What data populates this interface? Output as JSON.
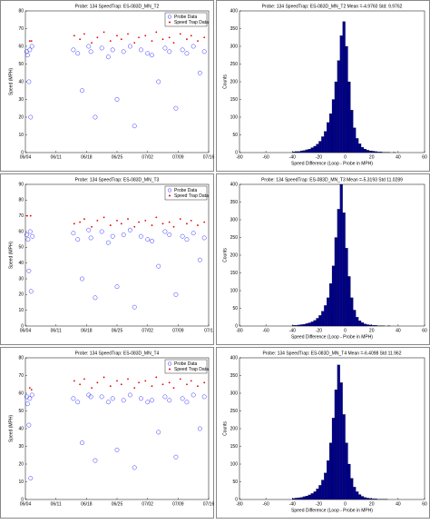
{
  "chart_data": [
    {
      "type": "scatter",
      "title": "Probe: 134    SpeedTrap: ES-083D_MN_T2",
      "ylabel": "Speed (MPH)",
      "xlim": [
        0,
        42
      ],
      "xticks": [
        {
          "value": 0,
          "label": "06/04"
        },
        {
          "value": 7,
          "label": "06/11"
        },
        {
          "value": 14,
          "label": "06/18"
        },
        {
          "value": 21,
          "label": "06/25"
        },
        {
          "value": 28,
          "label": "07/02"
        },
        {
          "value": 35,
          "label": "07/09"
        },
        {
          "value": 42,
          "label": "07/16"
        }
      ],
      "ylim": [
        0,
        80
      ],
      "yticks": [
        0,
        10,
        20,
        30,
        40,
        50,
        60,
        70,
        80
      ],
      "legend": "upper-right",
      "series": [
        {
          "name": "Probe Data",
          "color": "#3030ff",
          "x": [
            0.3,
            0.5,
            0.8,
            1.0,
            1.2,
            1.5,
            11,
            12,
            13,
            14.5,
            15,
            16,
            17.5,
            19,
            20,
            21,
            22.5,
            24,
            25,
            26.5,
            28,
            29,
            30.5,
            32,
            33,
            34.5,
            36,
            37,
            38.5,
            40,
            41
          ],
          "values": [
            57,
            55,
            40,
            58,
            20,
            60,
            58,
            56,
            35,
            60,
            57,
            20,
            59,
            54,
            58,
            30,
            57,
            60,
            15,
            58,
            56,
            55,
            40,
            59,
            57,
            25,
            58,
            56,
            60,
            45,
            57
          ]
        },
        {
          "name": "Speed Trap Data",
          "color": "#e00000",
          "x": [
            1.0,
            1.4,
            11.2,
            12.5,
            13.5,
            15.2,
            16.5,
            18,
            19.5,
            21,
            22,
            23.5,
            25,
            26,
            27.5,
            29,
            30,
            31.5,
            33,
            34,
            35.5,
            37,
            38,
            39.5,
            41
          ],
          "values": [
            63,
            63,
            66,
            64,
            67,
            62,
            65,
            68,
            63,
            66,
            64,
            67,
            62,
            65,
            66,
            63,
            68,
            64,
            65,
            62,
            67,
            64,
            66,
            63,
            65
          ]
        }
      ]
    },
    {
      "type": "histogram",
      "title": "Probe: 134    SpeedTrap: ES-083D_MN_T2    Mean =-4.9760  Std: 9.9762",
      "xlabel": "Speed Difference (Loop - Probe in MPH)",
      "ylabel": "Counts",
      "xlim": [
        -80,
        60
      ],
      "xticks": [
        -80,
        -60,
        -40,
        -20,
        0,
        20,
        40,
        60
      ],
      "ylim": [
        0,
        400
      ],
      "yticks": [
        0,
        50,
        100,
        150,
        200,
        250,
        300,
        350,
        400
      ],
      "color": "#00008b",
      "bins": [
        -40,
        -38,
        -36,
        -34,
        -32,
        -30,
        -28,
        -26,
        -24,
        -22,
        -20,
        -18,
        -16,
        -14,
        -12,
        -10,
        -8,
        -6,
        -4,
        -2,
        0,
        2,
        4,
        6,
        8,
        10,
        12,
        14,
        16,
        18,
        20,
        22,
        24,
        26,
        28,
        30,
        32,
        34,
        36,
        38,
        40
      ],
      "values": [
        2,
        3,
        3,
        5,
        6,
        8,
        10,
        14,
        18,
        24,
        32,
        45,
        60,
        85,
        110,
        150,
        200,
        260,
        330,
        370,
        300,
        200,
        120,
        70,
        40,
        25,
        15,
        10,
        7,
        5,
        4,
        3,
        2,
        2,
        1,
        1,
        1,
        0,
        1,
        0
      ]
    },
    {
      "type": "scatter",
      "title": "Probe: 134    SpeedTrap: ES-083D_MN_T3",
      "ylabel": "Speed (MPH)",
      "xlim": [
        0,
        42
      ],
      "xticks": [
        {
          "value": 0,
          "label": "06/04"
        },
        {
          "value": 7,
          "label": "06/11"
        },
        {
          "value": 14,
          "label": "06/18"
        },
        {
          "value": 21,
          "label": "06/25"
        },
        {
          "value": 28,
          "label": "07/02"
        },
        {
          "value": 35,
          "label": "07/09"
        },
        {
          "value": 42,
          "label": "07/1"
        }
      ],
      "ylim": [
        0,
        90
      ],
      "yticks": [
        0,
        10,
        20,
        30,
        40,
        50,
        60,
        70,
        80,
        90
      ],
      "legend": "upper-right",
      "series": [
        {
          "name": "Probe Data",
          "color": "#3030ff",
          "x": [
            0.3,
            0.6,
            0.8,
            1.1,
            1.3,
            1.6,
            11,
            12,
            13,
            14.5,
            15,
            16,
            17.5,
            19,
            20,
            21,
            22.5,
            24,
            25,
            26.5,
            28,
            29,
            30.5,
            32,
            33,
            34.5,
            36,
            37,
            38.5,
            40,
            41
          ],
          "values": [
            58,
            55,
            35,
            60,
            22,
            57,
            59,
            55,
            30,
            61,
            56,
            18,
            60,
            53,
            57,
            25,
            58,
            61,
            12,
            57,
            55,
            54,
            38,
            60,
            58,
            20,
            57,
            55,
            59,
            42,
            56
          ]
        },
        {
          "name": "Speed Trap Data",
          "color": "#e00000",
          "x": [
            0.4,
            1.2,
            11.2,
            12.5,
            13.5,
            15.2,
            16.5,
            18,
            19.5,
            21,
            22,
            23.5,
            25,
            26,
            27.5,
            29,
            30,
            31.5,
            33,
            34,
            35.5,
            37,
            38,
            39.5,
            41
          ],
          "values": [
            70,
            70,
            65,
            66,
            68,
            63,
            67,
            69,
            64,
            67,
            65,
            68,
            63,
            66,
            67,
            64,
            69,
            65,
            66,
            63,
            68,
            65,
            67,
            64,
            66
          ]
        }
      ]
    },
    {
      "type": "histogram",
      "title": "Probe: 134    SpeedTrap: ES-083D_MN_T3    Mean =-5.3193  Std 11.0289",
      "xlabel": "Speed Difference (Loop - Probe in MPH)",
      "ylabel": "Counts",
      "xlim": [
        -80,
        60
      ],
      "xticks": [
        -80,
        -60,
        -40,
        -20,
        0,
        20,
        40,
        60
      ],
      "ylim": [
        0,
        400
      ],
      "yticks": [
        0,
        50,
        100,
        150,
        200,
        250,
        300,
        350,
        400
      ],
      "color": "#00008b",
      "bins": [
        -40,
        -38,
        -36,
        -34,
        -32,
        -30,
        -28,
        -26,
        -24,
        -22,
        -20,
        -18,
        -16,
        -14,
        -12,
        -10,
        -8,
        -6,
        -4,
        -2,
        0,
        2,
        4,
        6,
        8,
        10,
        12,
        14,
        16,
        18,
        20,
        22,
        24,
        26,
        28,
        30,
        32,
        34,
        36,
        38,
        40
      ],
      "values": [
        2,
        2,
        3,
        4,
        5,
        7,
        9,
        12,
        16,
        22,
        30,
        42,
        58,
        80,
        120,
        170,
        250,
        330,
        400,
        320,
        220,
        140,
        80,
        45,
        25,
        15,
        10,
        6,
        4,
        3,
        2,
        2,
        1,
        1,
        1,
        0,
        1,
        0,
        0,
        0
      ]
    },
    {
      "type": "scatter",
      "title": "Probe: 134    SpeedTrap: ES-083D_MN_T4",
      "ylabel": "Speed (MPH)",
      "xlim": [
        0,
        42
      ],
      "xticks": [
        {
          "value": 0,
          "label": "06/04"
        },
        {
          "value": 7,
          "label": "06/11"
        },
        {
          "value": 14,
          "label": "06/18"
        },
        {
          "value": 21,
          "label": "06/25"
        },
        {
          "value": 28,
          "label": "07/02"
        },
        {
          "value": 35,
          "label": "07/09"
        },
        {
          "value": 42,
          "label": "07/16"
        }
      ],
      "ylim": [
        0,
        80
      ],
      "yticks": [
        0,
        10,
        20,
        30,
        40,
        50,
        60,
        70,
        80
      ],
      "legend": "upper-right",
      "series": [
        {
          "name": "Probe Data",
          "color": "#3030ff",
          "x": [
            0.3,
            0.5,
            0.8,
            1.0,
            1.2,
            1.5,
            11,
            12,
            13,
            14.5,
            15,
            16,
            17.5,
            19,
            20,
            21,
            22.5,
            24,
            25,
            26.5,
            28,
            29,
            30.5,
            32,
            33,
            34.5,
            36,
            37,
            38.5,
            40,
            41
          ],
          "values": [
            58,
            54,
            42,
            57,
            12,
            59,
            57,
            55,
            32,
            59,
            58,
            22,
            58,
            55,
            57,
            28,
            56,
            59,
            18,
            57,
            55,
            56,
            38,
            58,
            56,
            24,
            57,
            55,
            59,
            40,
            58
          ]
        },
        {
          "name": "Speed Trap Data",
          "color": "#e00000",
          "x": [
            1.0,
            1.4,
            11.2,
            12.5,
            13.5,
            15.2,
            16.5,
            18,
            19.5,
            21,
            22,
            23.5,
            25,
            26,
            27.5,
            29,
            30,
            31.5,
            33,
            34,
            35.5,
            37,
            38,
            39.5,
            41
          ],
          "values": [
            63,
            62,
            67,
            65,
            68,
            63,
            66,
            69,
            64,
            67,
            65,
            68,
            63,
            66,
            67,
            64,
            69,
            65,
            66,
            63,
            68,
            65,
            67,
            64,
            66
          ]
        }
      ]
    },
    {
      "type": "histogram",
      "title": "Probe: 134    SpeedTrap: ES-083D_MN_T4    Mean =-6.4098  Std 11.962",
      "xlabel": "Speed Difference (Loop - Probe in MPH)",
      "ylabel": "Counts",
      "xlim": [
        -80,
        60
      ],
      "xticks": [
        -80,
        -60,
        -40,
        -20,
        0,
        20,
        40,
        60
      ],
      "ylim": [
        0,
        400
      ],
      "yticks": [
        0,
        50,
        100,
        150,
        200,
        250,
        300,
        350,
        400
      ],
      "color": "#00008b",
      "bins": [
        -40,
        -38,
        -36,
        -34,
        -32,
        -30,
        -28,
        -26,
        -24,
        -22,
        -20,
        -18,
        -16,
        -14,
        -12,
        -10,
        -8,
        -6,
        -4,
        -2,
        0,
        2,
        4,
        6,
        8,
        10,
        12,
        14,
        16,
        18,
        20,
        22,
        24,
        26,
        28,
        30,
        32,
        34,
        36,
        38,
        40
      ],
      "values": [
        3,
        4,
        5,
        6,
        8,
        10,
        13,
        17,
        22,
        30,
        40,
        55,
        75,
        110,
        160,
        230,
        310,
        380,
        330,
        240,
        160,
        100,
        60,
        35,
        22,
        14,
        9,
        6,
        4,
        3,
        2,
        2,
        1,
        1,
        1,
        1,
        0,
        0,
        0,
        0
      ]
    }
  ]
}
